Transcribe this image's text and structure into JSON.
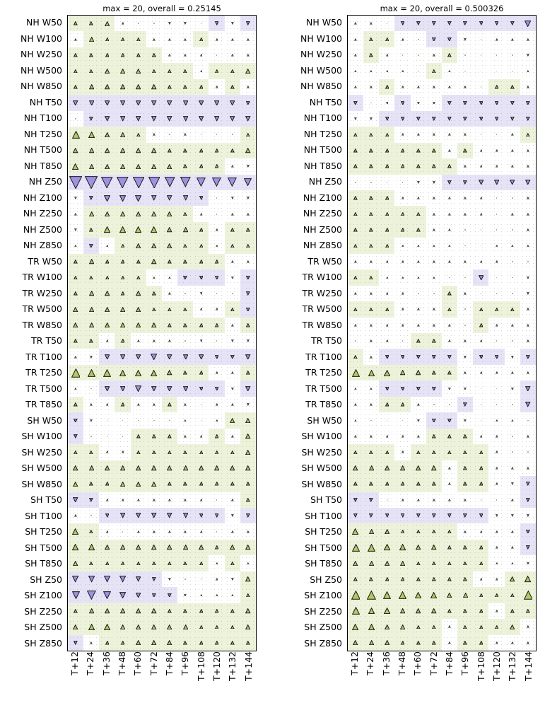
{
  "chart_data": {
    "type": "heatmap",
    "subtype": "verification-scorecard-triangles",
    "columns": [
      "T+12",
      "T+24",
      "T+36",
      "T+48",
      "T+60",
      "T+72",
      "T+84",
      "T+96",
      "T+108",
      "T+120",
      "T+132",
      "T+144"
    ],
    "rows": [
      "NH W50",
      "NH W100",
      "NH W250",
      "NH W500",
      "NH W850",
      "NH T50",
      "NH T100",
      "NH T250",
      "NH T500",
      "NH T850",
      "NH Z50",
      "NH Z100",
      "NH Z250",
      "NH Z500",
      "NH Z850",
      "TR W50",
      "TR W100",
      "TR W250",
      "TR W500",
      "TR W850",
      "TR T50",
      "TR T100",
      "TR T250",
      "TR T500",
      "TR T850",
      "SH W50",
      "SH W100",
      "SH W250",
      "SH W500",
      "SH W850",
      "SH T50",
      "SH T100",
      "SH T250",
      "SH T500",
      "SH T850",
      "SH Z50",
      "SH Z100",
      "SH Z250",
      "SH Z500",
      "SH Z850"
    ],
    "legend": {
      "encoding": "positive value = upward olive-green triangle, negative value = downward purple triangle; |value| scales triangle size; cell shaded green when clearly positive, lavender when clearly negative",
      "up_fill": "#b3c961",
      "down_fill": "#9e92e2",
      "up_bg": "#edf2da",
      "down_bg": "#e6e3f6",
      "outline": "#1a1a1a"
    },
    "panels": [
      {
        "title": "max = 20, overall = 0.25145",
        "max": 20,
        "overall": 0.25145,
        "values": [
          [
            2,
            2,
            3,
            1,
            0,
            0,
            -1,
            -1,
            0,
            -2,
            -1,
            -2
          ],
          [
            1,
            3,
            2,
            2,
            2,
            1,
            1,
            1,
            2,
            1,
            1,
            1
          ],
          [
            2,
            2,
            2,
            2,
            2,
            2,
            1,
            1,
            1,
            0,
            1,
            1
          ],
          [
            2,
            2,
            3,
            3,
            3,
            2,
            2,
            2,
            1,
            2,
            2,
            3
          ],
          [
            2,
            3,
            3,
            3,
            3,
            3,
            2,
            2,
            2,
            1,
            2,
            1
          ],
          [
            -3,
            -3,
            -3,
            -3,
            -3,
            -3,
            -3,
            -3,
            -3,
            -3,
            -3,
            -2
          ],
          [
            0,
            -2,
            -3,
            -3,
            -3,
            -3,
            -3,
            -3,
            -3,
            -3,
            -3,
            -3
          ],
          [
            5,
            4,
            3,
            3,
            2,
            1,
            0,
            1,
            0,
            0,
            0,
            2
          ],
          [
            3,
            3,
            3,
            3,
            3,
            3,
            2,
            2,
            2,
            2,
            2,
            3
          ],
          [
            4,
            3,
            3,
            3,
            3,
            3,
            3,
            2,
            2,
            2,
            1,
            -1
          ],
          [
            -9,
            -9,
            -8,
            -8,
            -8,
            -8,
            -7,
            -7,
            -6,
            -6,
            -6,
            -5
          ],
          [
            -1,
            -2,
            -4,
            -4,
            -4,
            -3,
            -3,
            -3,
            -2,
            0,
            -1,
            -1
          ],
          [
            1,
            3,
            3,
            3,
            3,
            3,
            3,
            2,
            1,
            0,
            1,
            1
          ],
          [
            -1,
            2,
            4,
            4,
            4,
            4,
            3,
            3,
            2,
            1,
            2,
            2
          ],
          [
            1,
            -2,
            1,
            2,
            3,
            3,
            3,
            2,
            2,
            1,
            2,
            2
          ],
          [
            2,
            3,
            2,
            2,
            2,
            3,
            2,
            2,
            2,
            2,
            1,
            1
          ],
          [
            2,
            2,
            2,
            2,
            2,
            1,
            1,
            -2,
            -2,
            -2,
            -1,
            -2
          ],
          [
            2,
            3,
            3,
            2,
            3,
            2,
            1,
            0,
            -1,
            0,
            0,
            -2
          ],
          [
            3,
            3,
            3,
            3,
            3,
            2,
            2,
            2,
            1,
            1,
            2,
            -2
          ],
          [
            3,
            3,
            3,
            3,
            3,
            3,
            2,
            2,
            2,
            2,
            1,
            2
          ],
          [
            2,
            2,
            1,
            2,
            1,
            1,
            1,
            0,
            -1,
            0,
            -1,
            -1
          ],
          [
            1,
            -1,
            -3,
            -3,
            -3,
            -4,
            -3,
            -3,
            -3,
            -2,
            -2,
            -3
          ],
          [
            6,
            5,
            5,
            4,
            4,
            4,
            3,
            2,
            2,
            1,
            1,
            2
          ],
          [
            1,
            0,
            -3,
            -3,
            -4,
            -3,
            -3,
            -3,
            -2,
            -2,
            -1,
            -3
          ],
          [
            2,
            1,
            1,
            2,
            1,
            1,
            2,
            1,
            0,
            1,
            1,
            -1
          ],
          [
            -2,
            -1,
            0,
            0,
            0,
            0,
            0,
            1,
            0,
            1,
            3,
            3
          ],
          [
            -2,
            0,
            0,
            0,
            2,
            2,
            2,
            1,
            1,
            2,
            1,
            3
          ],
          [
            2,
            2,
            1,
            1,
            2,
            2,
            2,
            2,
            2,
            2,
            2,
            3
          ],
          [
            3,
            3,
            3,
            3,
            3,
            3,
            3,
            3,
            3,
            3,
            3,
            3
          ],
          [
            3,
            2,
            2,
            3,
            3,
            3,
            2,
            2,
            2,
            2,
            2,
            2
          ],
          [
            -3,
            -2,
            1,
            1,
            1,
            1,
            1,
            1,
            1,
            0,
            1,
            2
          ],
          [
            1,
            0,
            -2,
            -3,
            -3,
            -3,
            -3,
            -3,
            -2,
            -2,
            -1,
            -2
          ],
          [
            4,
            2,
            1,
            0,
            1,
            1,
            1,
            1,
            1,
            0,
            1,
            1
          ],
          [
            4,
            4,
            3,
            3,
            3,
            3,
            3,
            3,
            3,
            2,
            3,
            3
          ],
          [
            3,
            2,
            2,
            2,
            2,
            2,
            2,
            2,
            2,
            1,
            2,
            1
          ],
          [
            -4,
            -4,
            -4,
            -4,
            -3,
            -2,
            -1,
            0,
            0,
            1,
            -1,
            3
          ],
          [
            -5,
            -6,
            -5,
            -4,
            -3,
            -2,
            -2,
            -1,
            1,
            1,
            1,
            2
          ],
          [
            2,
            3,
            3,
            3,
            3,
            3,
            2,
            2,
            2,
            2,
            2,
            3
          ],
          [
            3,
            4,
            4,
            3,
            3,
            3,
            3,
            3,
            2,
            2,
            2,
            3
          ],
          [
            -2,
            1,
            2,
            2,
            3,
            3,
            3,
            2,
            2,
            2,
            2,
            2
          ]
        ]
      },
      {
        "title": "max = 20, overall = 0.500326",
        "max": 20,
        "overall": 0.500326,
        "values": [
          [
            1,
            1,
            0,
            -2,
            -2,
            -2,
            -2,
            -2,
            -2,
            -2,
            -2,
            -4
          ],
          [
            1,
            2,
            2,
            1,
            0,
            -2,
            -2,
            -1,
            0,
            1,
            1,
            1
          ],
          [
            1,
            2,
            1,
            0,
            0,
            1,
            2,
            0,
            0,
            0,
            0,
            -1
          ],
          [
            1,
            1,
            1,
            1,
            0,
            2,
            1,
            0,
            0,
            0,
            0,
            1
          ],
          [
            1,
            1,
            2,
            1,
            1,
            1,
            1,
            1,
            0,
            2,
            2,
            1
          ],
          [
            -2,
            0,
            -1,
            -2,
            -1,
            -1,
            -2,
            -2,
            -2,
            -2,
            -2,
            -2
          ],
          [
            -1,
            -1,
            -2,
            -2,
            -2,
            -2,
            -2,
            -2,
            -2,
            -2,
            -2,
            -2
          ],
          [
            2,
            2,
            2,
            1,
            1,
            1,
            1,
            1,
            0,
            0,
            1,
            2
          ],
          [
            2,
            2,
            2,
            2,
            2,
            2,
            1,
            2,
            1,
            1,
            1,
            1
          ],
          [
            2,
            2,
            2,
            2,
            2,
            2,
            2,
            1,
            1,
            1,
            1,
            1
          ],
          [
            0,
            0,
            0,
            0,
            -1,
            -1,
            -2,
            -2,
            -3,
            -3,
            -3,
            -3
          ],
          [
            2,
            2,
            2,
            1,
            1,
            1,
            1,
            1,
            1,
            0,
            0,
            1
          ],
          [
            2,
            2,
            2,
            2,
            2,
            1,
            1,
            1,
            1,
            0,
            1,
            1
          ],
          [
            2,
            2,
            2,
            2,
            2,
            1,
            1,
            0,
            0,
            0,
            0,
            1
          ],
          [
            2,
            2,
            2,
            1,
            1,
            1,
            1,
            0,
            0,
            1,
            1,
            1
          ],
          [
            1,
            1,
            1,
            1,
            1,
            1,
            1,
            1,
            1,
            1,
            0,
            0
          ],
          [
            2,
            2,
            1,
            1,
            1,
            1,
            0,
            0,
            -3,
            0,
            0,
            -1
          ],
          [
            1,
            1,
            1,
            1,
            0,
            0,
            2,
            1,
            0,
            0,
            0,
            -1
          ],
          [
            2,
            2,
            2,
            1,
            1,
            1,
            2,
            0,
            2,
            2,
            2,
            1
          ],
          [
            1,
            1,
            1,
            1,
            1,
            1,
            1,
            0,
            2,
            1,
            1,
            1
          ],
          [
            0,
            1,
            1,
            0,
            2,
            2,
            1,
            1,
            1,
            0,
            0,
            1
          ],
          [
            2,
            1,
            -2,
            -2,
            -2,
            -2,
            -2,
            -1,
            -2,
            -2,
            -1,
            -2
          ],
          [
            5,
            4,
            4,
            3,
            3,
            2,
            2,
            1,
            1,
            1,
            1,
            1
          ],
          [
            1,
            1,
            -2,
            -2,
            -2,
            -2,
            -1,
            -1,
            0,
            0,
            -1,
            -3
          ],
          [
            1,
            1,
            2,
            2,
            1,
            0,
            0,
            -2,
            0,
            0,
            0,
            -3
          ],
          [
            1,
            0,
            0,
            0,
            -1,
            -2,
            -2,
            -1,
            0,
            1,
            1,
            0
          ],
          [
            1,
            1,
            1,
            1,
            1,
            2,
            2,
            2,
            1,
            1,
            0,
            1
          ],
          [
            2,
            2,
            2,
            1,
            2,
            2,
            2,
            2,
            2,
            1,
            0,
            0
          ],
          [
            3,
            3,
            3,
            3,
            3,
            3,
            1,
            2,
            2,
            1,
            1,
            1
          ],
          [
            2,
            2,
            2,
            2,
            2,
            2,
            1,
            2,
            2,
            1,
            -1,
            -2
          ],
          [
            -2,
            -2,
            0,
            1,
            1,
            1,
            1,
            1,
            0,
            0,
            1,
            -2
          ],
          [
            -2,
            -2,
            -2,
            -2,
            -2,
            -2,
            -2,
            -2,
            -2,
            -1,
            -1,
            -1
          ],
          [
            4,
            3,
            3,
            2,
            2,
            2,
            2,
            1,
            1,
            1,
            1,
            -2
          ],
          [
            5,
            5,
            4,
            4,
            3,
            3,
            2,
            2,
            2,
            1,
            1,
            -2
          ],
          [
            3,
            3,
            3,
            3,
            2,
            2,
            2,
            2,
            2,
            1,
            1,
            -1
          ],
          [
            2,
            2,
            2,
            2,
            2,
            2,
            2,
            2,
            1,
            1,
            3,
            4
          ],
          [
            6,
            6,
            5,
            5,
            4,
            4,
            3,
            3,
            2,
            2,
            2,
            6
          ],
          [
            5,
            4,
            4,
            3,
            3,
            3,
            2,
            2,
            2,
            1,
            2,
            2
          ],
          [
            4,
            4,
            3,
            3,
            2,
            2,
            1,
            2,
            2,
            2,
            3,
            1
          ],
          [
            3,
            3,
            3,
            2,
            2,
            2,
            1,
            2,
            2,
            1,
            1,
            1
          ]
        ]
      }
    ]
  }
}
